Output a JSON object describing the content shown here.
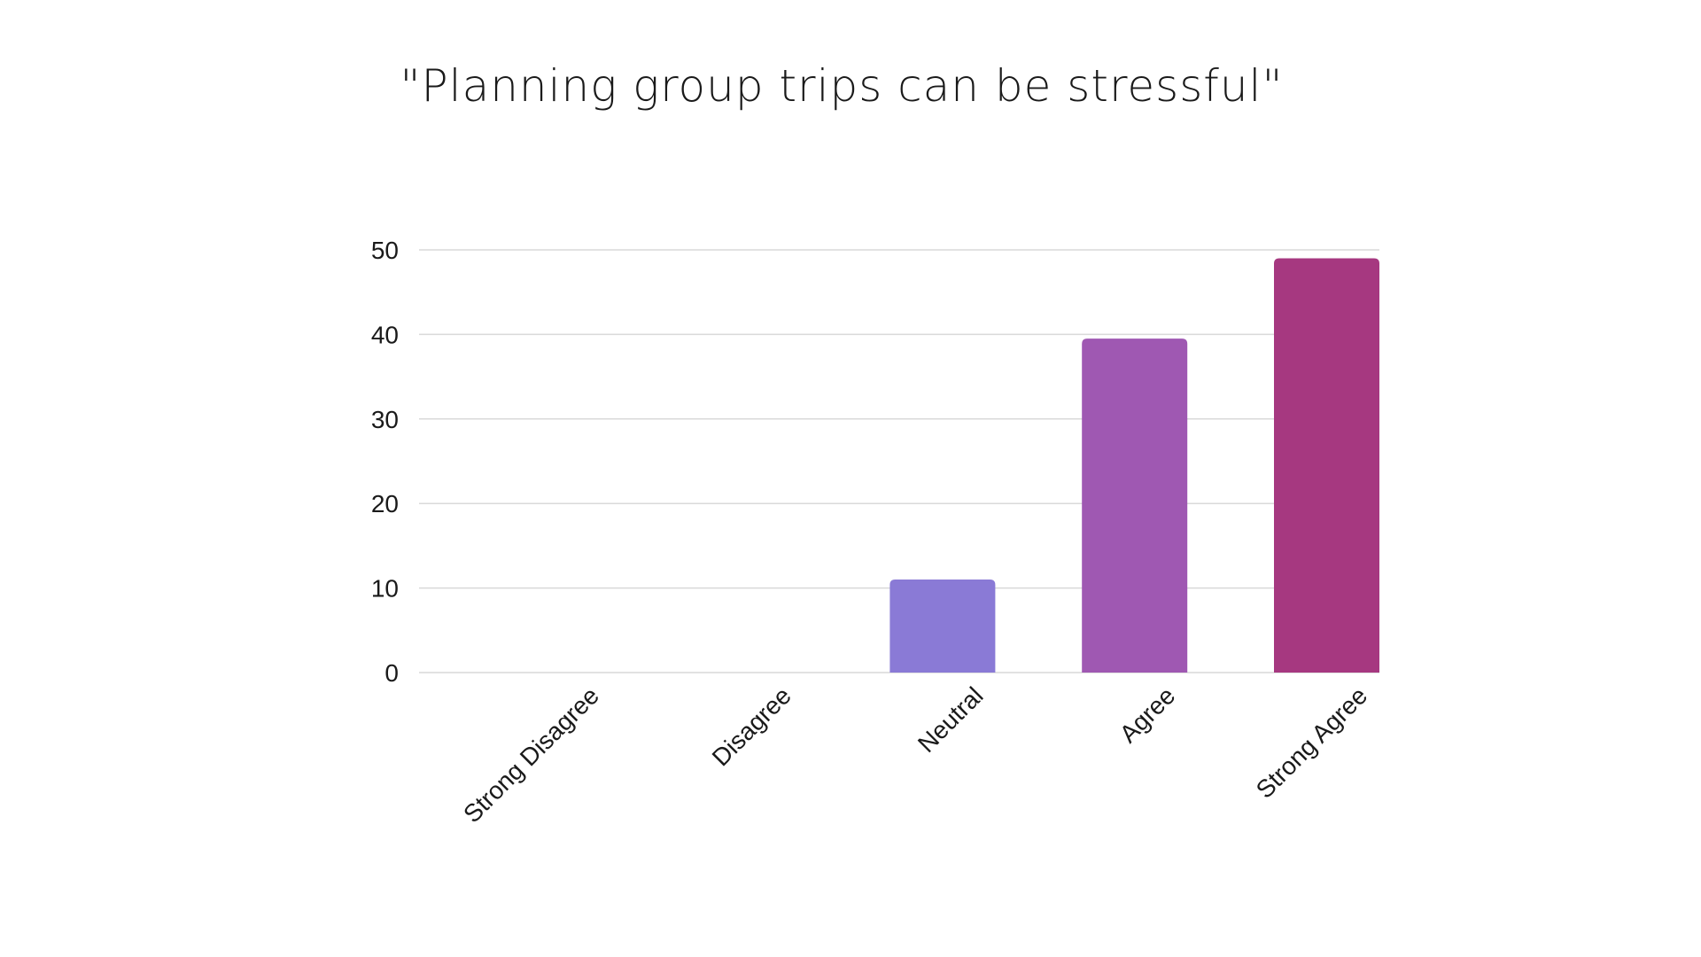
{
  "chart_data": {
    "type": "bar",
    "title": "\"Planning group trips can be stressful\"",
    "categories": [
      "Strong Disagree",
      "Disagree",
      "Neutral",
      "Agree",
      "Strong Agree"
    ],
    "values": [
      0,
      0,
      11,
      39.5,
      49
    ],
    "colors": [
      "#8a7ad6",
      "#8a7ad6",
      "#8a7ad6",
      "#9f58b2",
      "#a63880"
    ],
    "xlabel": "",
    "ylabel": "",
    "ylim": [
      0,
      50
    ],
    "yticks": [
      0,
      10,
      20,
      30,
      40,
      50
    ],
    "grid": true,
    "legend": "none"
  }
}
